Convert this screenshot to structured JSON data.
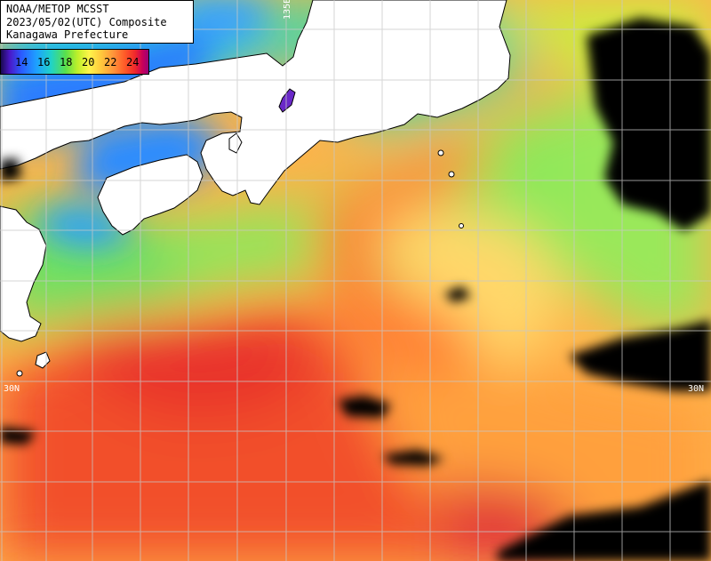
{
  "title": {
    "line1": "NOAA/METOP MCSST",
    "line2": "2023/05/02(UTC) Composite",
    "line3": "Kanagawa Prefecture"
  },
  "legend": {
    "labels": [
      "14",
      "16",
      "18",
      "20",
      "22",
      "24"
    ]
  },
  "grid_labels": {
    "lat_left": "30N",
    "lat_right": "30N",
    "lon_top": "135E"
  },
  "colors": {
    "land": "#ffffff",
    "cloud": "#000000",
    "grid": "#c8c8c8",
    "sst_cold": "#2a5cff",
    "sst_cool": "#20d2c8",
    "sst_mid": "#7ee85a",
    "sst_warm": "#ffd25a",
    "sst_hot": "#ff7a32",
    "sst_hottest": "#e8302c"
  }
}
